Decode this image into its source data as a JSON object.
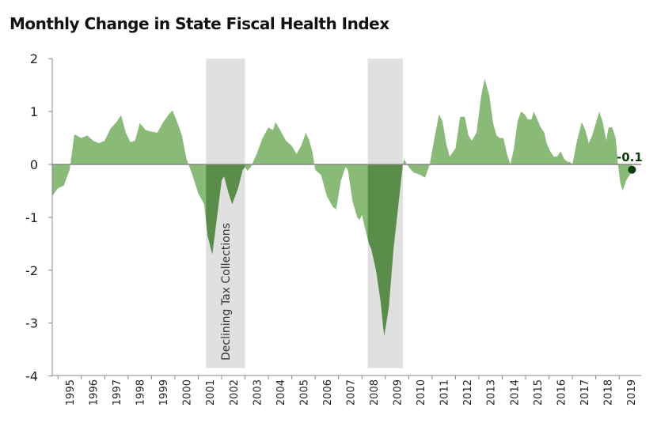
{
  "chart_data": {
    "type": "area",
    "title": "Monthly Change in State Fiscal Health Index",
    "xlabel": "",
    "ylabel": "",
    "ylim": [
      -4,
      2
    ],
    "yticks": [
      2,
      1,
      0,
      -1,
      -2,
      -3,
      -4
    ],
    "xticks": [
      "1995",
      "1996",
      "1997",
      "1998",
      "1999",
      "2000",
      "2001",
      "2002",
      "2003",
      "2004",
      "2005",
      "2006",
      "2007",
      "2008",
      "2009",
      "2010",
      "2011",
      "2012",
      "2013",
      "2014",
      "2015",
      "2016",
      "2017",
      "2018",
      "2019"
    ],
    "grid": false,
    "colors": {
      "area": "#8aba78",
      "area_highlight": "#5a8c4a",
      "band": "#e0e0e0",
      "endpoint": "#0b3d0b"
    },
    "shaded_periods": [
      {
        "start": "2001-05",
        "end": "2003-01",
        "label": "Declining Tax Collections"
      },
      {
        "start": "2008-04",
        "end": "2009-10",
        "label": ""
      }
    ],
    "end_label": "-0.1",
    "series": [
      {
        "x": [
          1994.75,
          1995.0,
          1995.25,
          1995.5,
          1995.7,
          1996.0,
          1996.25,
          1996.5,
          1996.75,
          1997.0,
          1997.25,
          1997.5,
          1997.7,
          1997.9,
          1998.1,
          1998.3,
          1998.5,
          1998.75,
          1999.0,
          1999.25,
          1999.5,
          1999.75,
          1999.9,
          2000.1,
          2000.3,
          2000.5,
          2000.75,
          2001.0,
          2001.25,
          2001.4,
          2001.6,
          2001.8,
          2002.0,
          2002.1,
          2002.3,
          2002.45,
          2002.7,
          2002.9,
          2003.0,
          2003.1,
          2003.25,
          2003.5,
          2003.75,
          2004.0,
          2004.2,
          2004.3,
          2004.5,
          2004.75,
          2005.0,
          2005.2,
          2005.4,
          2005.6,
          2005.75,
          2005.9,
          2006.0,
          2006.25,
          2006.5,
          2006.75,
          2006.9,
          2007.1,
          2007.3,
          2007.4,
          2007.6,
          2007.8,
          2007.9,
          2008.0,
          2008.1,
          2008.3,
          2008.4,
          2008.6,
          2008.8,
          2008.95,
          2009.15,
          2009.35,
          2009.55,
          2009.75,
          2009.8,
          2010.0,
          2010.2,
          2010.5,
          2010.7,
          2010.9,
          2011.1,
          2011.3,
          2011.45,
          2011.6,
          2011.75,
          2012.0,
          2012.2,
          2012.4,
          2012.55,
          2012.7,
          2012.9,
          2013.1,
          2013.25,
          2013.45,
          2013.6,
          2013.75,
          2013.9,
          2014.05,
          2014.2,
          2014.35,
          2014.5,
          2014.65,
          2014.8,
          2014.95,
          2015.1,
          2015.25,
          2015.35,
          2015.5,
          2015.65,
          2015.8,
          2015.9,
          2016.05,
          2016.2,
          2016.35,
          2016.5,
          2016.65,
          2016.8,
          2016.9,
          2017.0,
          2017.2,
          2017.4,
          2017.55,
          2017.7,
          2017.85,
          2018.05,
          2018.15,
          2018.3,
          2018.45,
          2018.55,
          2018.7,
          2018.85,
          2018.95,
          2019.05,
          2019.15,
          2019.3,
          2019.45,
          2019.55
        ],
        "values": [
          -0.6,
          -0.45,
          -0.4,
          -0.1,
          0.57,
          0.5,
          0.55,
          0.45,
          0.4,
          0.45,
          0.68,
          0.8,
          0.93,
          0.6,
          0.42,
          0.45,
          0.78,
          0.65,
          0.62,
          0.6,
          0.8,
          0.95,
          1.02,
          0.8,
          0.55,
          0.1,
          -0.2,
          -0.55,
          -0.75,
          -1.35,
          -1.7,
          -1.0,
          -0.3,
          -0.22,
          -0.55,
          -0.75,
          -0.45,
          -0.1,
          -0.05,
          -0.12,
          -0.05,
          0.2,
          0.5,
          0.7,
          0.65,
          0.8,
          0.65,
          0.45,
          0.35,
          0.2,
          0.35,
          0.6,
          0.45,
          0.2,
          -0.1,
          -0.2,
          -0.6,
          -0.8,
          -0.85,
          -0.3,
          -0.05,
          -0.1,
          -0.7,
          -1.0,
          -1.05,
          -0.95,
          -1.15,
          -1.5,
          -1.6,
          -2.0,
          -2.6,
          -3.25,
          -2.7,
          -1.6,
          -0.8,
          0.0,
          0.1,
          -0.05,
          -0.15,
          -0.2,
          -0.25,
          0.0,
          0.5,
          0.95,
          0.8,
          0.4,
          0.15,
          0.3,
          0.9,
          0.9,
          0.55,
          0.45,
          0.6,
          1.3,
          1.62,
          1.3,
          0.8,
          0.55,
          0.5,
          0.5,
          0.2,
          0.0,
          0.3,
          0.8,
          1.0,
          0.95,
          0.85,
          0.85,
          1.0,
          0.85,
          0.7,
          0.6,
          0.4,
          0.25,
          0.15,
          0.15,
          0.25,
          0.1,
          0.05,
          0.05,
          0.0,
          0.45,
          0.8,
          0.65,
          0.4,
          0.55,
          0.85,
          1.0,
          0.8,
          0.45,
          0.7,
          0.7,
          0.5,
          0.0,
          -0.35,
          -0.5,
          -0.3,
          -0.2,
          -0.1
        ]
      }
    ]
  }
}
